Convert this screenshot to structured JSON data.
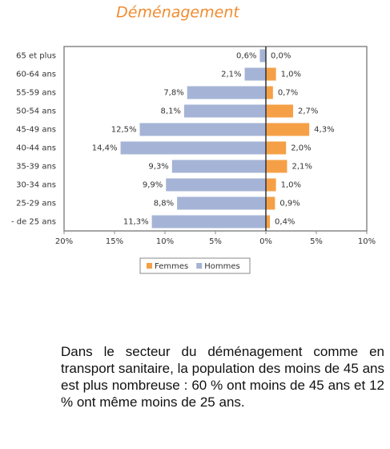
{
  "chart_data": {
    "type": "pyramid",
    "title": "Déménagement",
    "categories": [
      "65 et plus",
      "60-64 ans",
      "55-59 ans",
      "50-54 ans",
      "45-49 ans",
      "40-44 ans",
      "35-39 ans",
      "30-34 ans",
      "25-29 ans",
      "- de 25 ans"
    ],
    "series": [
      {
        "name": "Femmes",
        "color": "#f5a046",
        "values": [
          0.0,
          1.0,
          0.7,
          2.7,
          4.3,
          2.0,
          2.1,
          1.0,
          0.9,
          0.4
        ],
        "value_labels": [
          "0,0%",
          "1,0%",
          "0,7%",
          "2,7%",
          "4,3%",
          "2,0%",
          "2,1%",
          "1,0%",
          "0,9%",
          "0,4%"
        ]
      },
      {
        "name": "Hommes",
        "color": "#a5b4d6",
        "values": [
          -0.6,
          -2.1,
          -7.8,
          -8.1,
          -12.5,
          -14.4,
          -9.3,
          -9.9,
          -8.8,
          -11.3
        ],
        "value_labels": [
          "0,6%",
          "2,1%",
          "7,8%",
          "8,1%",
          "12,5%",
          "14,4%",
          "9,3%",
          "9,9%",
          "8,8%",
          "11,3%"
        ]
      }
    ],
    "xlim": [
      -20,
      10
    ],
    "xticks": [
      {
        "value": -20,
        "label": "20%"
      },
      {
        "value": -15,
        "label": "15%"
      },
      {
        "value": -10,
        "label": "10%"
      },
      {
        "value": -5,
        "label": "5%"
      },
      {
        "value": 0,
        "label": "0%"
      },
      {
        "value": 5,
        "label": "5%"
      },
      {
        "value": 10,
        "label": "10%"
      }
    ],
    "legend": "bottom"
  },
  "paragraph": "Dans le secteur du déménagement comme en transport sanitaire, la population des moins de 45 ans est plus nombreuse : 60 % ont moins de 45 ans et 12 % ont même moins de 25 ans."
}
